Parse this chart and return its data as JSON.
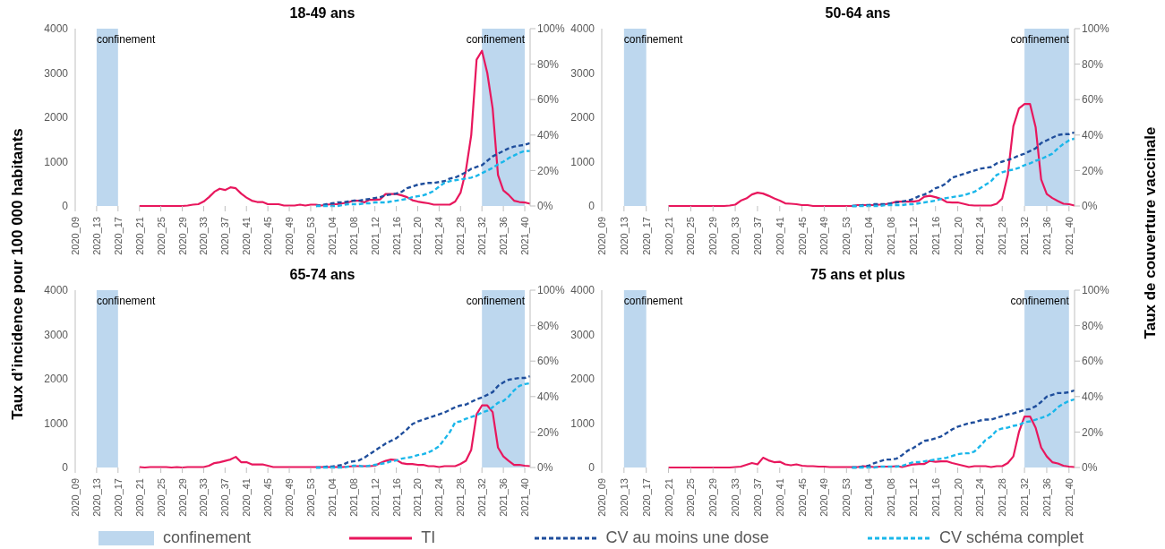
{
  "chart_data": [
    {
      "type": "line",
      "title": "18-49 ans",
      "ylabel": "Taux d’incidence pour 100 000 habitants",
      "y2label": "Taux de couverture vaccinale",
      "legend": "bottom",
      "marker": "none",
      "categories": [
        "2020_09",
        null,
        null,
        null,
        "2020_13",
        null,
        null,
        null,
        "2020_17",
        null,
        null,
        null,
        "2020_21",
        null,
        null,
        null,
        "2020_25",
        null,
        null,
        null,
        "2020_29",
        null,
        null,
        null,
        "2020_33",
        null,
        null,
        null,
        "2020_37",
        null,
        null,
        null,
        "2020_41",
        null,
        null,
        null,
        "2020_45",
        null,
        null,
        null,
        "2020_49",
        null,
        null,
        null,
        "2020_53",
        null,
        null,
        null,
        "2021_04",
        null,
        null,
        null,
        "2021_08",
        null,
        null,
        null,
        "2021_12",
        null,
        null,
        null,
        "2021_16",
        null,
        null,
        null,
        "2021_20",
        null,
        null,
        null,
        "2021_24",
        null,
        null,
        null,
        "2021_28",
        null,
        null,
        null,
        "2021_32",
        null,
        null,
        null,
        "2021_36",
        null,
        null,
        null,
        "2021_40",
        null
      ],
      "ylim": [
        0,
        4000
      ],
      "yticks": [
        0,
        1000,
        2000,
        3000,
        4000
      ],
      "y2lim": [
        0,
        100
      ],
      "y2ticks": [
        {
          "value": 0,
          "label": "0%"
        },
        {
          "value": 20,
          "label": "20%"
        },
        {
          "value": 40,
          "label": "40%"
        },
        {
          "value": 60,
          "label": "60%"
        },
        {
          "value": 80,
          "label": "80%"
        },
        {
          "value": 100,
          "label": "100%"
        }
      ],
      "bands": [
        {
          "axis": "x",
          "from": "2020_13",
          "to": "2020_17",
          "label": "confinement",
          "color": "#bdd7ee"
        },
        {
          "axis": "x",
          "from": "2021_32",
          "to": "2021_40",
          "label": "confinement",
          "color": "#bdd7ee"
        }
      ],
      "series": [
        {
          "name": "TI",
          "color": "#e8175d",
          "line_style": "solid",
          "values": [
            null,
            null,
            null,
            null,
            null,
            null,
            null,
            null,
            null,
            null,
            null,
            null,
            0,
            0,
            0,
            0,
            0,
            0,
            0,
            0,
            0,
            10,
            30,
            40,
            100,
            200,
            320,
            390,
            360,
            420,
            400,
            280,
            190,
            120,
            90,
            90,
            40,
            40,
            40,
            10,
            10,
            10,
            30,
            10,
            30,
            30,
            10,
            30,
            40,
            40,
            60,
            80,
            120,
            120,
            80,
            140,
            140,
            150,
            270,
            270,
            270,
            240,
            200,
            130,
            100,
            80,
            60,
            30,
            30,
            30,
            30,
            100,
            300,
            800,
            1600,
            3300,
            3500,
            3000,
            2200,
            700,
            350,
            250,
            120,
            90,
            80,
            50
          ]
        },
        {
          "name": "CV au moins une dose",
          "color": "#1f4e9c",
          "line_style": "dashed",
          "axis": "y2",
          "values": [
            null,
            null,
            null,
            null,
            null,
            null,
            null,
            null,
            null,
            null,
            null,
            null,
            null,
            null,
            null,
            null,
            null,
            null,
            null,
            null,
            null,
            null,
            null,
            null,
            null,
            null,
            null,
            null,
            null,
            null,
            null,
            null,
            null,
            null,
            null,
            null,
            null,
            null,
            null,
            null,
            null,
            null,
            null,
            null,
            null,
            0,
            0.5,
            1,
            1.5,
            2,
            2,
            2.5,
            3,
            3,
            3.5,
            4,
            4.5,
            5,
            6,
            6.5,
            7,
            8,
            10,
            11,
            12,
            12.5,
            13,
            13,
            13.5,
            14,
            15.5,
            16,
            17.5,
            19,
            21,
            22,
            23,
            25.5,
            28,
            29.5,
            31,
            32.5,
            33.5,
            34,
            34.5,
            35.5
          ]
        },
        {
          "name": "CV schéma complet",
          "color": "#1ab7ea",
          "line_style": "dashed",
          "axis": "y2",
          "values": [
            null,
            null,
            null,
            null,
            null,
            null,
            null,
            null,
            null,
            null,
            null,
            null,
            null,
            null,
            null,
            null,
            null,
            null,
            null,
            null,
            null,
            null,
            null,
            null,
            null,
            null,
            null,
            null,
            null,
            null,
            null,
            null,
            null,
            null,
            null,
            null,
            null,
            null,
            null,
            null,
            null,
            null,
            null,
            null,
            null,
            0,
            0,
            0,
            0,
            0,
            0.5,
            1,
            1,
            1,
            1.5,
            1.5,
            2,
            2,
            2,
            2.5,
            3,
            3.5,
            4,
            5,
            5.5,
            6,
            7,
            8.5,
            11,
            13,
            14,
            14.5,
            15,
            15.5,
            16,
            17,
            18.5,
            20,
            21.5,
            23.5,
            25,
            27,
            28.5,
            30,
            31,
            31
          ]
        }
      ]
    },
    {
      "type": "line",
      "title": "50-64 ans",
      "marker": "none",
      "categories": [
        "2020_09",
        null,
        null,
        null,
        "2020_13",
        null,
        null,
        null,
        "2020_17",
        null,
        null,
        null,
        "2020_21",
        null,
        null,
        null,
        "2020_25",
        null,
        null,
        null,
        "2020_29",
        null,
        null,
        null,
        "2020_33",
        null,
        null,
        null,
        "2020_37",
        null,
        null,
        null,
        "2020_41",
        null,
        null,
        null,
        "2020_45",
        null,
        null,
        null,
        "2020_49",
        null,
        null,
        null,
        "2020_53",
        null,
        null,
        null,
        "2021_04",
        null,
        null,
        null,
        "2021_08",
        null,
        null,
        null,
        "2021_12",
        null,
        null,
        null,
        "2021_16",
        null,
        null,
        null,
        "2021_20",
        null,
        null,
        null,
        "2021_24",
        null,
        null,
        null,
        "2021_28",
        null,
        null,
        null,
        "2021_32",
        null,
        null,
        null,
        "2021_36",
        null,
        null,
        null,
        "2021_40",
        null
      ],
      "ylim": [
        0,
        4000
      ],
      "yticks": [
        0,
        1000,
        2000,
        3000,
        4000
      ],
      "y2lim": [
        0,
        100
      ],
      "y2ticks": [
        {
          "value": 0,
          "label": "0%"
        },
        {
          "value": 20,
          "label": "20%"
        },
        {
          "value": 40,
          "label": "40%"
        },
        {
          "value": 60,
          "label": "60%"
        },
        {
          "value": 80,
          "label": "80%"
        },
        {
          "value": 100,
          "label": "100%"
        }
      ],
      "bands": [
        {
          "axis": "x",
          "from": "2020_13",
          "to": "2020_17",
          "label": "confinement",
          "color": "#bdd7ee"
        },
        {
          "axis": "x",
          "from": "2021_32",
          "to": "2021_40",
          "label": "confinement",
          "color": "#bdd7ee"
        }
      ],
      "series": [
        {
          "color": "#e8175d",
          "line_style": "solid",
          "values": [
            null,
            null,
            null,
            null,
            null,
            null,
            null,
            null,
            null,
            null,
            null,
            null,
            0,
            0,
            0,
            0,
            0,
            0,
            0,
            0,
            0,
            0,
            0,
            10,
            30,
            120,
            170,
            260,
            300,
            280,
            230,
            170,
            120,
            60,
            50,
            40,
            20,
            20,
            0,
            0,
            0,
            0,
            0,
            0,
            0,
            0,
            20,
            20,
            20,
            20,
            30,
            40,
            60,
            100,
            100,
            100,
            100,
            120,
            210,
            230,
            200,
            160,
            90,
            80,
            80,
            50,
            20,
            10,
            10,
            10,
            10,
            50,
            170,
            700,
            1800,
            2200,
            2300,
            2300,
            1780,
            600,
            270,
            180,
            110,
            50,
            40,
            10
          ]
        },
        {
          "color": "#1f4e9c",
          "line_style": "dashed",
          "axis": "y2",
          "values": [
            null,
            null,
            null,
            null,
            null,
            null,
            null,
            null,
            null,
            null,
            null,
            null,
            null,
            null,
            null,
            null,
            null,
            null,
            null,
            null,
            null,
            null,
            null,
            null,
            null,
            null,
            null,
            null,
            null,
            null,
            null,
            null,
            null,
            null,
            null,
            null,
            null,
            null,
            null,
            null,
            null,
            null,
            null,
            null,
            null,
            0,
            0,
            0.5,
            0.5,
            1,
            1,
            1,
            1.5,
            2,
            2.5,
            3,
            4,
            5.5,
            6.5,
            8,
            10,
            11,
            13,
            16,
            17,
            18,
            19,
            20,
            21,
            21.5,
            22,
            24,
            25,
            26,
            27,
            28.5,
            29.5,
            31,
            32.5,
            35.5,
            37,
            38.5,
            40,
            40.5,
            40.5,
            41.5
          ]
        },
        {
          "color": "#1ab7ea",
          "line_style": "dashed",
          "axis": "y2",
          "values": [
            null,
            null,
            null,
            null,
            null,
            null,
            null,
            null,
            null,
            null,
            null,
            null,
            null,
            null,
            null,
            null,
            null,
            null,
            null,
            null,
            null,
            null,
            null,
            null,
            null,
            null,
            null,
            null,
            null,
            null,
            null,
            null,
            null,
            null,
            null,
            null,
            null,
            null,
            null,
            null,
            null,
            null,
            null,
            null,
            null,
            0,
            0,
            0,
            0,
            0,
            0,
            0.5,
            0.5,
            0.5,
            0.5,
            1,
            1,
            1.5,
            2,
            2.5,
            3,
            4,
            4.5,
            5,
            5.5,
            6,
            7,
            8,
            10,
            12,
            14,
            17.5,
            19,
            20,
            20.5,
            21.5,
            23,
            24,
            25.5,
            26.5,
            28,
            29.5,
            32.5,
            35,
            37,
            38
          ]
        }
      ]
    },
    {
      "type": "line",
      "title": "65-74 ans",
      "marker": "none",
      "categories": [
        "2020_09",
        null,
        null,
        null,
        "2020_13",
        null,
        null,
        null,
        "2020_17",
        null,
        null,
        null,
        "2020_21",
        null,
        null,
        null,
        "2020_25",
        null,
        null,
        null,
        "2020_29",
        null,
        null,
        null,
        "2020_33",
        null,
        null,
        null,
        "2020_37",
        null,
        null,
        null,
        "2020_41",
        null,
        null,
        null,
        "2020_45",
        null,
        null,
        null,
        "2020_49",
        null,
        null,
        null,
        "2020_53",
        null,
        null,
        null,
        "2021_04",
        null,
        null,
        null,
        "2021_08",
        null,
        null,
        null,
        "2021_12",
        null,
        null,
        null,
        "2021_16",
        null,
        null,
        null,
        "2021_20",
        null,
        null,
        null,
        "2021_24",
        null,
        null,
        null,
        "2021_28",
        null,
        null,
        null,
        "2021_32",
        null,
        null,
        null,
        "2021_36",
        null,
        null,
        null,
        "2021_40",
        null
      ],
      "ylim": [
        0,
        4000
      ],
      "yticks": [
        0,
        1000,
        2000,
        3000,
        4000
      ],
      "y2lim": [
        0,
        100
      ],
      "y2ticks": [
        {
          "value": 0,
          "label": "0%"
        },
        {
          "value": 20,
          "label": "20%"
        },
        {
          "value": 40,
          "label": "40%"
        },
        {
          "value": 60,
          "label": "60%"
        },
        {
          "value": 80,
          "label": "80%"
        },
        {
          "value": 100,
          "label": "100%"
        }
      ],
      "bands": [
        {
          "axis": "x",
          "from": "2020_13",
          "to": "2020_17",
          "label": "confinement",
          "color": "#bdd7ee"
        },
        {
          "axis": "x",
          "from": "2021_32",
          "to": "2021_40",
          "label": "confinement",
          "color": "#bdd7ee"
        }
      ],
      "series": [
        {
          "color": "#e8175d",
          "line_style": "solid",
          "values": [
            null,
            null,
            null,
            null,
            null,
            null,
            null,
            null,
            null,
            null,
            null,
            null,
            10,
            0,
            10,
            10,
            10,
            10,
            0,
            10,
            0,
            10,
            10,
            10,
            10,
            40,
            100,
            120,
            150,
            180,
            240,
            120,
            120,
            70,
            70,
            70,
            40,
            10,
            10,
            10,
            10,
            10,
            10,
            10,
            10,
            10,
            10,
            10,
            10,
            10,
            10,
            20,
            30,
            30,
            30,
            30,
            40,
            100,
            150,
            180,
            170,
            100,
            80,
            80,
            60,
            60,
            30,
            30,
            10,
            30,
            30,
            30,
            80,
            150,
            400,
            1200,
            1400,
            1400,
            1250,
            450,
            250,
            150,
            60,
            60,
            40,
            30
          ]
        },
        {
          "color": "#1f4e9c",
          "line_style": "dashed",
          "axis": "y2",
          "values": [
            null,
            null,
            null,
            null,
            null,
            null,
            null,
            null,
            null,
            null,
            null,
            null,
            null,
            null,
            null,
            null,
            null,
            null,
            null,
            null,
            null,
            null,
            null,
            null,
            null,
            null,
            null,
            null,
            null,
            null,
            null,
            null,
            null,
            null,
            null,
            null,
            null,
            null,
            null,
            null,
            null,
            null,
            null,
            null,
            null,
            0,
            0,
            0.5,
            0.5,
            1,
            1.5,
            3,
            3.5,
            4,
            5.5,
            7.5,
            9.5,
            11.5,
            13.5,
            15,
            16.5,
            19,
            21.5,
            24.5,
            26,
            27,
            28,
            29,
            30,
            31,
            32.5,
            34,
            35,
            35.5,
            37,
            38.5,
            39.5,
            41,
            42.5,
            46,
            48,
            49.5,
            50,
            50.5,
            50.5,
            51.5
          ]
        },
        {
          "color": "#1ab7ea",
          "line_style": "dashed",
          "axis": "y2",
          "values": [
            null,
            null,
            null,
            null,
            null,
            null,
            null,
            null,
            null,
            null,
            null,
            null,
            null,
            null,
            null,
            null,
            null,
            null,
            null,
            null,
            null,
            null,
            null,
            null,
            null,
            null,
            null,
            null,
            null,
            null,
            null,
            null,
            null,
            null,
            null,
            null,
            null,
            null,
            null,
            null,
            null,
            null,
            null,
            null,
            null,
            0,
            0,
            0,
            0,
            0,
            0,
            0.5,
            1,
            1,
            0.5,
            1,
            1.5,
            2,
            2.5,
            3.5,
            4,
            5,
            5.5,
            6,
            7,
            7.5,
            8.5,
            10,
            12,
            16,
            20,
            25.5,
            26,
            27.5,
            28.5,
            29.5,
            31,
            32,
            34,
            36.5,
            37.5,
            40,
            43.5,
            46,
            47,
            47.5
          ]
        }
      ]
    },
    {
      "type": "line",
      "title": "75 ans et plus",
      "marker": "none",
      "categories": [
        "2020_09",
        null,
        null,
        null,
        "2020_13",
        null,
        null,
        null,
        "2020_17",
        null,
        null,
        null,
        "2020_21",
        null,
        null,
        null,
        "2020_25",
        null,
        null,
        null,
        "2020_29",
        null,
        null,
        null,
        "2020_33",
        null,
        null,
        null,
        "2020_37",
        null,
        null,
        null,
        "2020_41",
        null,
        null,
        null,
        "2020_45",
        null,
        null,
        null,
        "2020_49",
        null,
        null,
        null,
        "2020_53",
        null,
        null,
        null,
        "2021_04",
        null,
        null,
        null,
        "2021_08",
        null,
        null,
        null,
        "2021_12",
        null,
        null,
        null,
        "2021_16",
        null,
        null,
        null,
        "2021_20",
        null,
        null,
        null,
        "2021_24",
        null,
        null,
        null,
        "2021_28",
        null,
        null,
        null,
        "2021_32",
        null,
        null,
        null,
        "2021_36",
        null,
        null,
        null,
        "2021_40",
        null
      ],
      "ylim": [
        0,
        4000
      ],
      "yticks": [
        0,
        1000,
        2000,
        3000,
        4000
      ],
      "y2lim": [
        0,
        100
      ],
      "y2ticks": [
        {
          "value": 0,
          "label": "0%"
        },
        {
          "value": 20,
          "label": "20%"
        },
        {
          "value": 40,
          "label": "40%"
        },
        {
          "value": 60,
          "label": "60%"
        },
        {
          "value": 80,
          "label": "80%"
        },
        {
          "value": 100,
          "label": "100%"
        }
      ],
      "bands": [
        {
          "axis": "x",
          "from": "2020_13",
          "to": "2020_17",
          "label": "confinement",
          "color": "#bdd7ee"
        },
        {
          "axis": "x",
          "from": "2021_32",
          "to": "2021_40",
          "label": "confinement",
          "color": "#bdd7ee"
        }
      ],
      "series": [
        {
          "color": "#e8175d",
          "line_style": "solid",
          "values": [
            null,
            null,
            null,
            null,
            null,
            null,
            null,
            null,
            null,
            null,
            null,
            null,
            0,
            0,
            0,
            0,
            0,
            0,
            0,
            0,
            0,
            0,
            0,
            0,
            10,
            20,
            60,
            100,
            70,
            220,
            160,
            120,
            130,
            70,
            50,
            70,
            40,
            30,
            30,
            20,
            20,
            10,
            10,
            10,
            10,
            10,
            10,
            30,
            20,
            10,
            20,
            20,
            20,
            30,
            10,
            40,
            70,
            80,
            80,
            150,
            130,
            140,
            140,
            100,
            70,
            40,
            10,
            30,
            30,
            30,
            10,
            30,
            30,
            100,
            250,
            800,
            1150,
            1150,
            900,
            450,
            250,
            120,
            90,
            40,
            20,
            10
          ]
        },
        {
          "color": "#1f4e9c",
          "line_style": "dashed",
          "axis": "y2",
          "values": [
            null,
            null,
            null,
            null,
            null,
            null,
            null,
            null,
            null,
            null,
            null,
            null,
            null,
            null,
            null,
            null,
            null,
            null,
            null,
            null,
            null,
            null,
            null,
            null,
            null,
            null,
            null,
            null,
            null,
            null,
            null,
            null,
            null,
            null,
            null,
            null,
            null,
            null,
            null,
            null,
            null,
            null,
            null,
            null,
            null,
            0,
            0,
            0.5,
            1,
            2.5,
            3.5,
            4.5,
            4.5,
            5,
            7,
            9.5,
            11,
            13,
            15,
            15.5,
            16.5,
            17.5,
            19.5,
            21.5,
            23,
            24,
            25,
            25.5,
            26.5,
            27,
            27,
            28,
            29,
            30,
            30.5,
            31.5,
            32.5,
            33,
            34.5,
            37,
            40,
            41,
            42,
            42,
            42.5,
            43.5
          ]
        },
        {
          "color": "#1ab7ea",
          "line_style": "dashed",
          "axis": "y2",
          "values": [
            null,
            null,
            null,
            null,
            null,
            null,
            null,
            null,
            null,
            null,
            null,
            null,
            null,
            null,
            null,
            null,
            null,
            null,
            null,
            null,
            null,
            null,
            null,
            null,
            null,
            null,
            null,
            null,
            null,
            null,
            null,
            null,
            null,
            null,
            null,
            null,
            null,
            null,
            null,
            null,
            null,
            null,
            null,
            null,
            null,
            0,
            0,
            0,
            0,
            0,
            0.5,
            0.5,
            0.5,
            0.5,
            1,
            2,
            3,
            3,
            3.5,
            4,
            4.5,
            5,
            5.5,
            6.5,
            7.5,
            8,
            8,
            9,
            12,
            15.5,
            17.5,
            21,
            22,
            22.5,
            23.5,
            24,
            25.5,
            26,
            27,
            28,
            29,
            31,
            34,
            36,
            37.5,
            38.5
          ]
        }
      ]
    }
  ]
}
